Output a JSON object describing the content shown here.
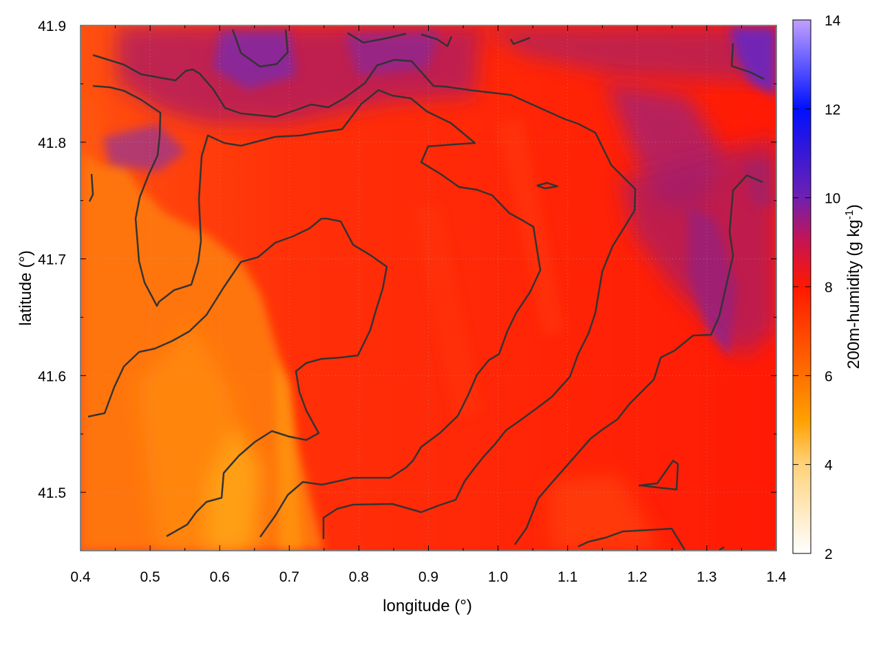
{
  "chart_data": {
    "type": "heatmap",
    "xlabel": "longitude (°)",
    "ylabel": "latitude (°)",
    "xlim": [
      0.4,
      1.4
    ],
    "ylim": [
      41.45,
      41.9
    ],
    "x_ticks": [
      "0.4",
      "0.5",
      "0.6",
      "0.7",
      "0.8",
      "0.9",
      "1.0",
      "1.1",
      "1.2",
      "1.3",
      "1.4"
    ],
    "y_ticks": [
      "41.5",
      "41.6",
      "41.7",
      "41.8",
      "41.9"
    ],
    "grid": true,
    "colorbar": {
      "label": "200m-humidity (g kg",
      "label_superscript": "-1",
      "label_close": ")",
      "range": [
        2,
        14
      ],
      "ticks": [
        "2",
        "4",
        "6",
        "8",
        "10",
        "12",
        "14"
      ],
      "colors": [
        {
          "value": 2,
          "color": "#ffffff"
        },
        {
          "value": 4,
          "color": "#ffd27a"
        },
        {
          "value": 5,
          "color": "#ffa000"
        },
        {
          "value": 6,
          "color": "#ff7000"
        },
        {
          "value": 8,
          "color": "#ff1800"
        },
        {
          "value": 9,
          "color": "#c81450"
        },
        {
          "value": 10,
          "color": "#7020b0"
        },
        {
          "value": 12,
          "color": "#0010ff"
        },
        {
          "value": 14,
          "color": "#c0a0ff"
        }
      ]
    },
    "field_description_points": [
      {
        "lon": 0.45,
        "lat": 41.55,
        "value": 6.2
      },
      {
        "lon": 0.63,
        "lat": 41.47,
        "value": 5.3
      },
      {
        "lon": 0.55,
        "lat": 41.65,
        "value": 6.4
      },
      {
        "lon": 0.85,
        "lat": 41.6,
        "value": 7.8
      },
      {
        "lon": 1.05,
        "lat": 41.75,
        "value": 8.0
      },
      {
        "lon": 0.7,
        "lat": 41.85,
        "value": 9.0
      },
      {
        "lon": 1.35,
        "lat": 41.88,
        "value": 10.2
      },
      {
        "lon": 1.3,
        "lat": 41.68,
        "value": 9.5
      }
    ]
  }
}
